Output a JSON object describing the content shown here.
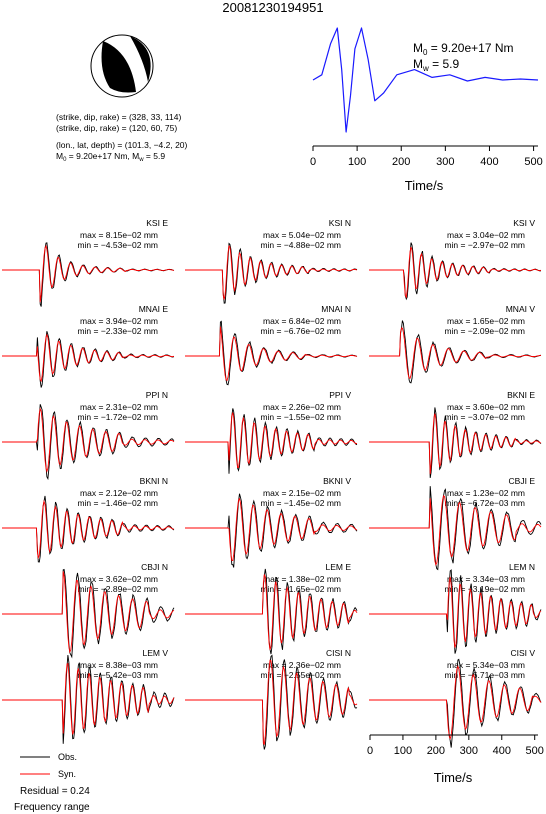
{
  "title": "20081230194951",
  "mechanism": {
    "plane1": "(strike, dip, rake) = (328, 33, 114)",
    "plane2": "(strike, dip, rake) = (120, 60, 75)",
    "location": "(lon., lat, depth) = (101.3, −4.2, 20)",
    "m0_prefix": "M",
    "m0_sub": "0",
    "m0_val": " = 9.20e+17 Nm, M",
    "mw_sub": "w",
    "mw_val": " = 5.9"
  },
  "stf": {
    "m0_prefix": "M",
    "m0_sub": "0",
    "m0_value": " = 9.20e+17 Nm",
    "mw_prefix": "M",
    "mw_sub": "w",
    "mw_value": " = 5.9",
    "xlabel": "Time/s",
    "xticks": [
      "0",
      "100",
      "200",
      "300",
      "400",
      "500"
    ],
    "color": "#1a1aff"
  },
  "bottom_axis": {
    "xlabel": "Time/s",
    "xticks": [
      "0",
      "100",
      "200",
      "300",
      "400",
      "500"
    ]
  },
  "legend": {
    "obs": "Obs.",
    "syn": "Syn.",
    "residual": "Residual = 0.24",
    "freq": "Frequency range"
  },
  "colors": {
    "obs": "#000000",
    "syn": "#ff0000"
  },
  "chart_data": {
    "type": "line",
    "x_unit": "s",
    "xlim": [
      0,
      500
    ],
    "stf_x": [
      0,
      20,
      40,
      55,
      65,
      75,
      85,
      95,
      110,
      125,
      140,
      160,
      190,
      230,
      270,
      310,
      350,
      390,
      430,
      470,
      510
    ],
    "stf_y": [
      0,
      0.1,
      0.7,
      1.0,
      0.2,
      -1.0,
      -0.3,
      0.6,
      1.0,
      0.4,
      -0.4,
      -0.25,
      0.1,
      0.2,
      0.05,
      0.1,
      -0.02,
      0.05,
      0.0,
      0.02,
      0.0
    ],
    "traces": [
      {
        "station": "KSI E",
        "max": "max = 8.15e−02 mm",
        "min": "min = −4.53e−02 mm",
        "onset": 0.22,
        "amp": 0.95,
        "ringing": 0.08,
        "dur": 0.2
      },
      {
        "station": "KSI N",
        "max": "max = 5.04e−02 mm",
        "min": "min = −4.88e−02 mm",
        "onset": 0.22,
        "amp": 0.85,
        "ringing": 0.12,
        "dur": 0.3
      },
      {
        "station": "KSI V",
        "max": "max = 3.04e−02 mm",
        "min": "min = −2.97e−02 mm",
        "onset": 0.2,
        "amp": 0.85,
        "ringing": 0.1,
        "dur": 0.3
      },
      {
        "station": "MNAI E",
        "max": "max = 3.94e−02 mm",
        "min": "min = −2.33e−02 mm",
        "onset": 0.2,
        "amp": 0.8,
        "ringing": 0.12,
        "dur": 0.35
      },
      {
        "station": "MNAI N",
        "max": "max = 6.84e−02 mm",
        "min": "min = −6.76e−02 mm",
        "onset": 0.2,
        "amp": 0.9,
        "ringing": 0.1,
        "dur": 0.3
      },
      {
        "station": "MNAI V",
        "max": "max = 1.65e−02 mm",
        "min": "min = −2.09e−02 mm",
        "onset": 0.18,
        "amp": 0.85,
        "ringing": 0.1,
        "dur": 0.35
      },
      {
        "station": "PPI N",
        "max": "max = 2.31e−02 mm",
        "min": "min = −1.72e−02 mm",
        "onset": 0.2,
        "amp": 0.85,
        "ringing": 0.3,
        "dur": 0.5
      },
      {
        "station": "PPI V",
        "max": "max = 2.26e−02 mm",
        "min": "min = −1.55e−02 mm",
        "onset": 0.25,
        "amp": 0.8,
        "ringing": 0.25,
        "dur": 0.5
      },
      {
        "station": "BKNI E",
        "max": "max = 3.60e−02 mm",
        "min": "min = −3.07e−02 mm",
        "onset": 0.35,
        "amp": 0.9,
        "ringing": 0.15,
        "dur": 0.35
      },
      {
        "station": "BKNI N",
        "max": "max = 2.12e−02 mm",
        "min": "min = −1.46e−02 mm",
        "onset": 0.2,
        "amp": 0.8,
        "ringing": 0.2,
        "dur": 0.5
      },
      {
        "station": "BKNI V",
        "max": "max = 2.15e−02 mm",
        "min": "min = −1.45e−02 mm",
        "onset": 0.25,
        "amp": 0.85,
        "ringing": 0.3,
        "dur": 0.55
      },
      {
        "station": "CBJI E",
        "max": "max = 1.23e−02 mm",
        "min": "min = −6.72e−03 mm",
        "onset": 0.35,
        "amp": 0.9,
        "ringing": 0.4,
        "dur": 0.6
      },
      {
        "station": "CBJI N",
        "max": "max = 3.62e−02 mm",
        "min": "min = −2.89e−02 mm",
        "onset": 0.35,
        "amp": 0.95,
        "ringing": 0.4,
        "dur": 0.6
      },
      {
        "station": "LEM E",
        "max": "max = 1.38e−02 mm",
        "min": "min = −1.65e−02 mm",
        "onset": 0.45,
        "amp": 0.95,
        "ringing": 0.35,
        "dur": 0.5
      },
      {
        "station": "LEM N",
        "max": "max = 3.34e−03 mm",
        "min": "min = −3.19e−02 mm",
        "onset": 0.45,
        "amp": 0.95,
        "ringing": 0.3,
        "dur": 0.5
      },
      {
        "station": "LEM V",
        "max": "max = 8.38e−03 mm",
        "min": "min = −5.42e−03 mm",
        "onset": 0.35,
        "amp": 0.9,
        "ringing": 0.4,
        "dur": 0.6
      },
      {
        "station": "CISI N",
        "max": "max = 2.36e−02 mm",
        "min": "min = −2.55e−02 mm",
        "onset": 0.45,
        "amp": 0.95,
        "ringing": 0.5,
        "dur": 0.55
      },
      {
        "station": "CISI V",
        "max": "max = 5.34e−03 mm",
        "min": "min = −6.71e−03 mm",
        "onset": 0.45,
        "amp": 0.95,
        "ringing": 0.35,
        "dur": 0.5
      }
    ]
  }
}
